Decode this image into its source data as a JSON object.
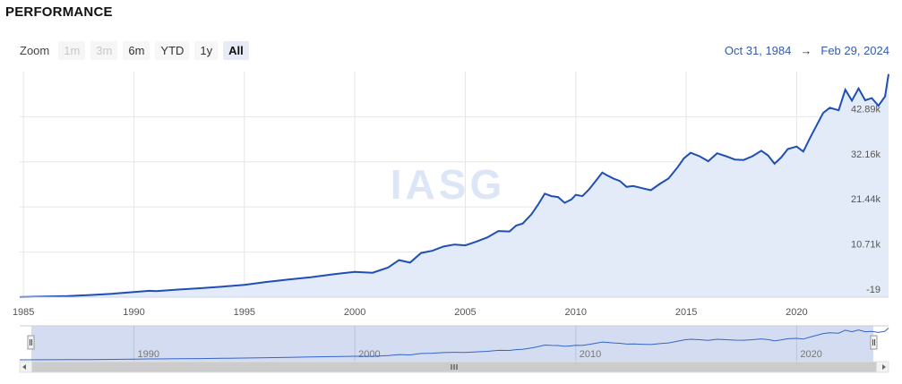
{
  "title": "PERFORMANCE",
  "zoom": {
    "label": "Zoom",
    "buttons": [
      {
        "label": "1m",
        "state": "disabled"
      },
      {
        "label": "3m",
        "state": "disabled"
      },
      {
        "label": "6m",
        "state": "enabled"
      },
      {
        "label": "YTD",
        "state": "enabled"
      },
      {
        "label": "1y",
        "state": "enabled"
      },
      {
        "label": "All",
        "state": "active"
      }
    ]
  },
  "range": {
    "from": "Oct 31, 1984",
    "arrow": "→",
    "to": "Feb 29, 2024"
  },
  "watermark": "IASG",
  "colors": {
    "line": "#1f4fb4",
    "area": "#e4ebf8",
    "navigator_mask": "#c9d3ee"
  },
  "chart_data": {
    "type": "area",
    "x_range": [
      1984.83,
      2024.16
    ],
    "ylim": [
      -19,
      53600
    ],
    "yticks": [
      -19,
      10710,
      21440,
      32160,
      42890
    ],
    "ytick_labels": [
      "-19",
      "10.71k",
      "21.44k",
      "32.16k",
      "42.89k"
    ],
    "xticks": [
      1985,
      1990,
      1995,
      2000,
      2005,
      2010,
      2015,
      2020
    ],
    "xtick_labels": [
      "1985",
      "1990",
      "1995",
      "2000",
      "2005",
      "2010",
      "2015",
      "2020"
    ],
    "navigator_ticks": [
      1990,
      2000,
      2010,
      2020
    ],
    "navigator_tick_labels": [
      "1990",
      "2000",
      "2010",
      "2020"
    ],
    "series": [
      {
        "x": [
          1984.83,
          1986,
          1987,
          1988,
          1989,
          1990,
          1990.7,
          1991,
          1992,
          1993,
          1994,
          1995,
          1996,
          1997,
          1998,
          1999,
          2000,
          2000.8,
          2001.5,
          2002,
          2002.5,
          2003,
          2003.5,
          2004,
          2004.5,
          2005,
          2005.5,
          2006,
          2006.5,
          2007,
          2007.3,
          2007.6,
          2008,
          2008.3,
          2008.6,
          2008.9,
          2009.2,
          2009.5,
          2009.8,
          2010,
          2010.3,
          2010.6,
          2010.9,
          2011.2,
          2011.4,
          2011.7,
          2012,
          2012.3,
          2012.6,
          2013,
          2013.4,
          2013.8,
          2014.2,
          2014.6,
          2014.9,
          2015.2,
          2015.6,
          2016,
          2016.4,
          2016.8,
          2017.2,
          2017.6,
          2018,
          2018.4,
          2018.7,
          2019,
          2019.3,
          2019.6,
          2020,
          2020.3,
          2020.6,
          2020.9,
          2021.2,
          2021.5,
          2021.9,
          2022.2,
          2022.5,
          2022.8,
          2023.1,
          2023.4,
          2023.7,
          2024.0,
          2024.16
        ],
        "y": [
          0,
          150,
          250,
          500,
          800,
          1200,
          1500,
          1400,
          1800,
          2100,
          2500,
          2900,
          3600,
          4200,
          4700,
          5400,
          6000,
          5800,
          7000,
          8800,
          8200,
          10500,
          11000,
          12000,
          12500,
          12300,
          13200,
          14200,
          15700,
          15600,
          17000,
          17500,
          19700,
          22000,
          24600,
          24000,
          23800,
          22400,
          23200,
          24300,
          24000,
          25600,
          27600,
          29600,
          29000,
          28200,
          27600,
          26200,
          26400,
          25900,
          25400,
          26900,
          28200,
          30800,
          33000,
          34300,
          33500,
          32300,
          34200,
          33500,
          32700,
          32600,
          33500,
          34800,
          33700,
          31700,
          33200,
          35200,
          35800,
          34600,
          37800,
          40800,
          43800,
          45000,
          44400,
          49300,
          46700,
          49600,
          46800,
          47300,
          45500,
          47700,
          53000
        ]
      }
    ]
  }
}
